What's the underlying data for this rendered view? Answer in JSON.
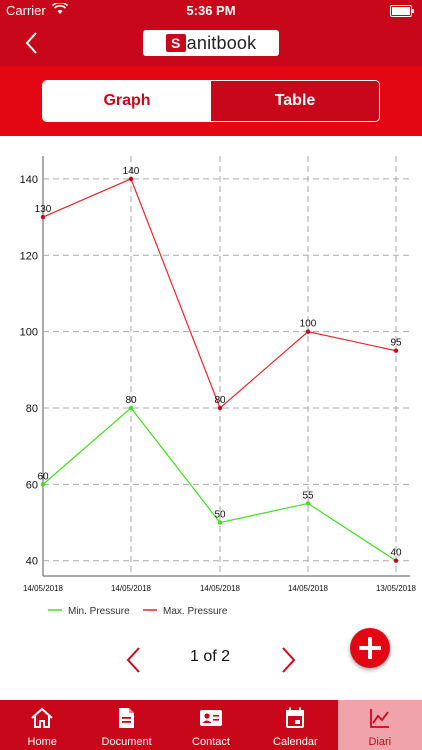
{
  "status": {
    "carrier": "Carrier",
    "time": "5:36 PM"
  },
  "header": {
    "logo_mark": "S",
    "logo_word": "anitbook"
  },
  "segment": {
    "graph": "Graph",
    "table": "Table"
  },
  "chart_data": {
    "type": "line",
    "x": [
      "14/05/2018",
      "14/05/2018",
      "14/05/2018",
      "14/05/2018",
      "13/05/2018"
    ],
    "y_ticks": [
      40,
      60,
      80,
      100,
      120,
      140
    ],
    "ylim": [
      36,
      146
    ],
    "grid": true,
    "legend": "bottom-left",
    "series": [
      {
        "name": "Min. Pressure",
        "values": [
          60,
          80,
          50,
          55,
          40
        ],
        "color": "#44dd22"
      },
      {
        "name": "Max. Pressure",
        "values": [
          130,
          140,
          80,
          100,
          95
        ],
        "color": "#e8262e"
      }
    ]
  },
  "pager": {
    "label": "1 of 2"
  },
  "tabs": [
    {
      "label": "Home",
      "icon": "home-icon"
    },
    {
      "label": "Document",
      "icon": "document-icon"
    },
    {
      "label": "Contact",
      "icon": "contact-icon"
    },
    {
      "label": "Calendar",
      "icon": "calendar-icon"
    },
    {
      "label": "Diari",
      "icon": "chart-icon"
    }
  ]
}
